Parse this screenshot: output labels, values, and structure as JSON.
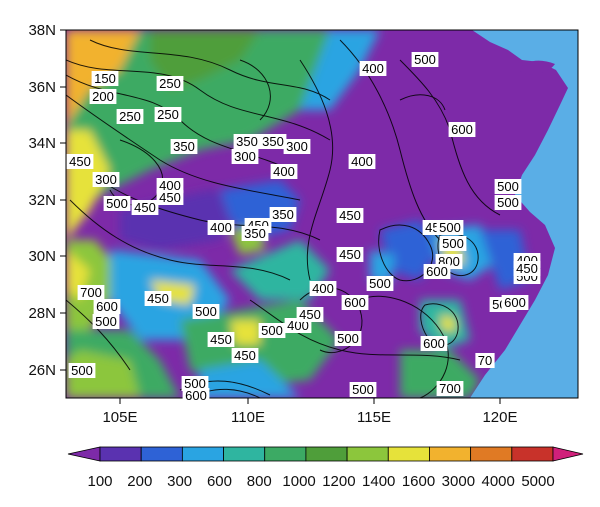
{
  "map": {
    "lat_ticks": [
      "38N",
      "36N",
      "34N",
      "32N",
      "30N",
      "28N",
      "26N"
    ],
    "lon_ticks": [
      "105E",
      "110E",
      "115E",
      "120E"
    ],
    "ocean_color": "#5aaee6",
    "frame_color": "#000000"
  },
  "colorbar": {
    "labels": [
      "100",
      "200",
      "300",
      "600",
      "800",
      "1000",
      "1200",
      "1400",
      "1600",
      "3000",
      "4000",
      "5000"
    ],
    "colors": [
      "#7d2aa8",
      "#5a32b0",
      "#2e62d6",
      "#2aa4e2",
      "#2fb5a0",
      "#3caa64",
      "#4f9e3a",
      "#8cc63c",
      "#e6e23a",
      "#f2b22e",
      "#e07a24",
      "#c8322a",
      "#d0207a"
    ]
  },
  "contour_labels": [
    {
      "text": "150"
    },
    {
      "text": "200"
    },
    {
      "text": "250"
    },
    {
      "text": "250"
    },
    {
      "text": "250"
    },
    {
      "text": "350"
    },
    {
      "text": "300"
    },
    {
      "text": "350"
    },
    {
      "text": "350"
    },
    {
      "text": "300"
    },
    {
      "text": "450"
    },
    {
      "text": "300"
    },
    {
      "text": "400"
    },
    {
      "text": "450"
    },
    {
      "text": "500"
    },
    {
      "text": "450"
    },
    {
      "text": "400"
    },
    {
      "text": "400"
    },
    {
      "text": "350"
    },
    {
      "text": "400"
    },
    {
      "text": "450"
    },
    {
      "text": "350"
    },
    {
      "text": "450"
    },
    {
      "text": "500"
    },
    {
      "text": "500"
    },
    {
      "text": "500"
    },
    {
      "text": "450"
    },
    {
      "text": "600"
    },
    {
      "text": "400"
    },
    {
      "text": "500"
    },
    {
      "text": "450"
    },
    {
      "text": "400"
    },
    {
      "text": "500"
    },
    {
      "text": "450"
    },
    {
      "text": "500"
    },
    {
      "text": "800"
    },
    {
      "text": "600"
    },
    {
      "text": "600"
    },
    {
      "text": "500"
    },
    {
      "text": "400"
    },
    {
      "text": "500"
    },
    {
      "text": "700"
    },
    {
      "text": "600"
    },
    {
      "text": "500"
    },
    {
      "text": "450"
    },
    {
      "text": "500"
    },
    {
      "text": "450"
    },
    {
      "text": "450"
    },
    {
      "text": "500"
    },
    {
      "text": "400"
    },
    {
      "text": "450"
    },
    {
      "text": "500"
    },
    {
      "text": "600"
    },
    {
      "text": "600"
    },
    {
      "text": "70"
    },
    {
      "text": "500"
    },
    {
      "text": "500"
    },
    {
      "text": "600"
    },
    {
      "text": "700"
    },
    {
      "text": "500"
    }
  ]
}
